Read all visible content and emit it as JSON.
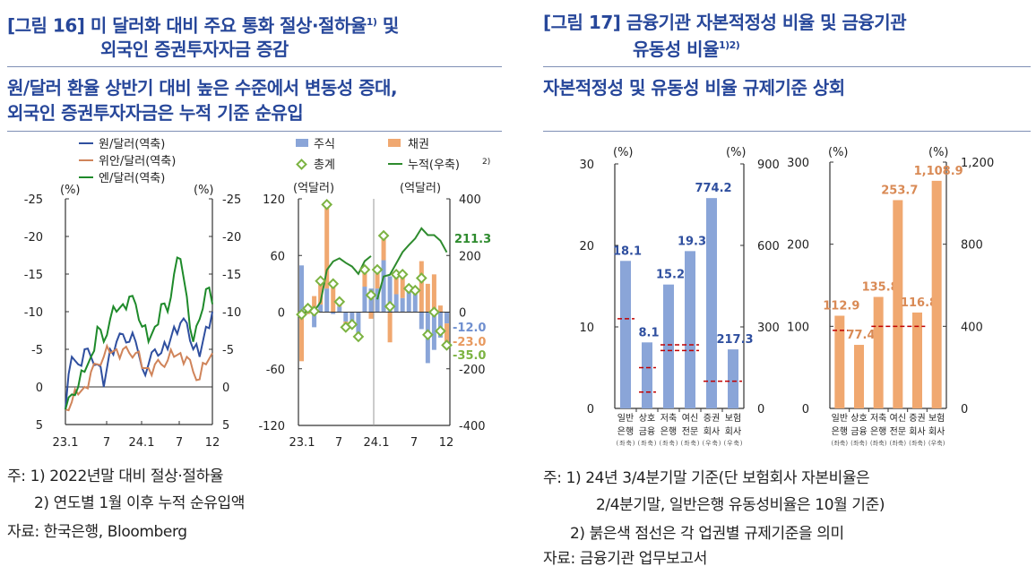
{
  "left": {
    "title_line1": "[그림 16] 미 달러화 대비 주요 통화 절상·절하율",
    "title_sup": "1)",
    "title_line1_end": " 및",
    "title_line2": "외국인 증권투자자금 증감",
    "subtitle_line1": "원/달러 환율 상반기 대비 높은 수준에서 변동성 증대,",
    "subtitle_line2": "외국인 증권투자자금은 누적 기준 순유입",
    "notes": [
      "주: 1) 2022년말 대비 절상·절하율",
      "2) 연도별 1월 이후 누적 순유입액",
      "자료: 한국은행, Bloomberg"
    ]
  },
  "right": {
    "title_line1": "[그림 17] 금융기관 자본적정성 비율 및 금융기관",
    "title_line2": "유동성 비율",
    "title_sup": "1)2)",
    "subtitle": "자본적정성 및 유동성 비율 규제기준 상회",
    "notes": [
      "주: 1) 24년 3/4분기말 기준(단 보험회사 자본비율은",
      "2/4분기말, 일반은행 유동성비율은 10월 기준)",
      "2) 붉은색 점선은 각 업권별 규제기준을 의미",
      "자료: 금융기관 업무보고서"
    ]
  },
  "colors": {
    "title": "#27479a",
    "won": "#2f4f9f",
    "yuan": "#d0845a",
    "yen": "#1e8a2a",
    "stock": "#8aa5d8",
    "bond": "#f0a870",
    "total": "#7cb342",
    "cum": "#2e8b2e",
    "capital": "#8aa5d8",
    "liquidity": "#f0a870",
    "regulation": "#c00000"
  },
  "chart_data": [
    {
      "type": "line",
      "legend": [
        "원/달러(역축)",
        "위안/달러(역축)",
        "엔/달러(역축)"
      ],
      "ylabel_left": "(%)",
      "ylabel_right": "(%)",
      "ylim": [
        5,
        -25
      ],
      "inverted": true,
      "yticks": [
        "-25",
        "-20",
        "-15",
        "-10",
        "-5",
        "0",
        "5"
      ],
      "xticks": [
        "23.1",
        "7",
        "24.1",
        "7",
        "12"
      ],
      "x": [
        "23.1",
        "23.2",
        "23.3",
        "23.4",
        "23.5",
        "23.6",
        "23.7",
        "23.8",
        "23.9",
        "23.10",
        "23.11",
        "23.12",
        "24.1",
        "24.2",
        "24.3",
        "24.4",
        "24.5",
        "24.6",
        "24.7",
        "24.8",
        "24.9",
        "24.10",
        "24.11",
        "24.12"
      ],
      "series": [
        {
          "name": "원/달러(역축)",
          "values": [
            3,
            -4,
            -3,
            -5,
            -4,
            -3,
            0,
            -5,
            -6,
            -7,
            -6,
            -6,
            -2.5,
            -3,
            -5,
            -4.5,
            -5,
            -8,
            -8.5,
            -8.5,
            -5,
            -4,
            -8,
            -10
          ]
        },
        {
          "name": "위안/달러(역축)",
          "values": [
            3,
            2,
            1,
            0,
            -2,
            -3,
            -4,
            -4.5,
            -5,
            -5,
            -4.5,
            -4.5,
            -2.5,
            -2.5,
            -3,
            -3,
            -3.5,
            -4,
            -4.5,
            -4,
            -2,
            -1,
            -3,
            -4.5
          ]
        },
        {
          "name": "엔/달러(역축)",
          "values": [
            3,
            1,
            0,
            -2,
            -4,
            -8,
            -6,
            -9,
            -10,
            -11,
            -12,
            -11,
            -8,
            -6,
            -8,
            -11,
            -10,
            -15,
            -17,
            -12,
            -6,
            -9,
            -13,
            -11
          ]
        }
      ]
    },
    {
      "type": "bar",
      "legend": [
        "주식",
        "채권",
        "총계",
        "누적(우축)"
      ],
      "legend_sup": "2)",
      "ylabel_left": "(억달러)",
      "ylabel_right": "(억달러)",
      "ylim": [
        -120,
        120
      ],
      "y2lim": [
        -400,
        400
      ],
      "yticks": [
        "120",
        "60",
        "0",
        "-60",
        "-120"
      ],
      "y2ticks": [
        "400",
        "200",
        "0",
        "-200",
        "-400"
      ],
      "xticks": [
        "23.1",
        "7",
        "24.1",
        "7",
        "12"
      ],
      "stock": [
        49.5,
        6,
        -16,
        8,
        25,
        -2,
        6,
        -10,
        -12,
        -22,
        27,
        25,
        25,
        55,
        38,
        19,
        15,
        24,
        21,
        -18,
        -54,
        -40,
        -27,
        -12
      ],
      "bond": [
        -52,
        -2,
        17,
        25,
        89,
        32,
        5,
        -6,
        -1,
        -4,
        18,
        -7,
        20,
        26,
        -32,
        21,
        25,
        1,
        2,
        54,
        30,
        40,
        7,
        -23
      ],
      "total": [
        -2.5,
        4,
        1,
        33,
        114,
        30,
        11,
        -16,
        -13,
        -26,
        45,
        18,
        45,
        81,
        6,
        40,
        40,
        25,
        23,
        36,
        -24,
        0,
        -20,
        -35
      ],
      "cumulative": [
        -2.5,
        1.5,
        2.5,
        35.5,
        149,
        179,
        190,
        174,
        161,
        135,
        180,
        198,
        45,
        126,
        132,
        172,
        212,
        237,
        260,
        296,
        272,
        272,
        252,
        211.3
      ],
      "end_labels": {
        "cumulative": "211.3",
        "stock": "-12.0",
        "bond": "-23.0",
        "total": "-35.0"
      }
    },
    {
      "type": "bar",
      "ylabel_left": "(%)",
      "ylabel_right": "(%)",
      "ylim": [
        0,
        30
      ],
      "y2lim": [
        0,
        900
      ],
      "yticks": [
        "30",
        "20",
        "10",
        "0"
      ],
      "y2ticks": [
        "900",
        "600",
        "300",
        "0"
      ],
      "categories": [
        [
          "일반",
          "은행",
          "(좌축)"
        ],
        [
          "상호",
          "금융",
          "(좌축)"
        ],
        [
          "저축",
          "은행",
          "(좌축)"
        ],
        [
          "여신",
          "전문",
          "(좌축)"
        ],
        [
          "증권",
          "회사",
          "(우축)"
        ],
        [
          "보험",
          "회사",
          "(우축)"
        ]
      ],
      "values": [
        18.1,
        8.1,
        15.2,
        19.3,
        774.2,
        217.3
      ],
      "axis": [
        "left",
        "left",
        "left",
        "left",
        "right",
        "right"
      ],
      "labels": [
        "18.1",
        "8.1",
        "15.2",
        "19.3",
        "774.2",
        "217.3"
      ],
      "regulation": [
        {
          "from": 0,
          "to": 0,
          "value": 11,
          "axis": "left"
        },
        {
          "from": 1,
          "to": 1,
          "value": 5,
          "axis": "left"
        },
        {
          "from": 1,
          "to": 1,
          "value": 2,
          "axis": "left"
        },
        {
          "from": 2,
          "to": 3,
          "value": 7.8,
          "axis": "left"
        },
        {
          "from": 2,
          "to": 3,
          "value": 7.1,
          "axis": "left"
        },
        {
          "from": 4,
          "to": 5,
          "value": 100,
          "axis": "right"
        }
      ]
    },
    {
      "type": "bar",
      "ylabel_left": "(%)",
      "ylabel_right": "(%)",
      "ylim": [
        0,
        300
      ],
      "y2lim": [
        0,
        1200
      ],
      "yticks": [
        "300",
        "200",
        "100",
        "0"
      ],
      "y2ticks": [
        "1,200",
        "800",
        "400",
        "0"
      ],
      "categories": [
        [
          "일반",
          "은행",
          "(좌축)"
        ],
        [
          "상호",
          "금융",
          "(좌축)"
        ],
        [
          "저축",
          "은행",
          "(좌축)"
        ],
        [
          "여신",
          "전문",
          "(좌축)"
        ],
        [
          "증권",
          "회사",
          "(좌축)"
        ],
        [
          "보험",
          "회사",
          "(우축)"
        ]
      ],
      "values": [
        112.9,
        77.4,
        135.8,
        253.7,
        116.8,
        1108.9
      ],
      "axis": [
        "left",
        "left",
        "left",
        "left",
        "left",
        "right"
      ],
      "labels": [
        "112.9",
        "77.4",
        "135.8",
        "253.7",
        "116.8",
        "1,108.9"
      ],
      "regulation": [
        {
          "from": 0,
          "to": 0,
          "value": 95,
          "axis": "left"
        },
        {
          "from": 2,
          "to": 4,
          "value": 100,
          "axis": "left"
        }
      ]
    }
  ]
}
